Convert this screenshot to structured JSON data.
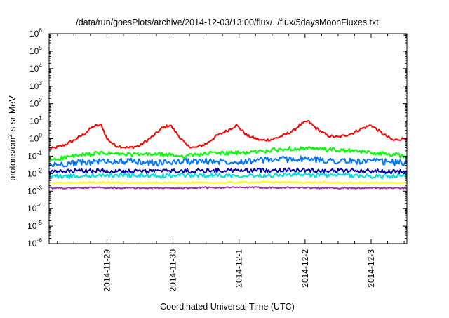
{
  "chart_data": {
    "type": "line",
    "title": "/data/run/goesPlots/archive/2014-12-03/13:00/flux/../flux/5daysMoonFluxes.txt",
    "xlabel": "Coordinated Universal Time (UTC)",
    "ylabel": {
      "base": "protons/cm",
      "sup": "2",
      "rest": "-s-sr-MeV"
    },
    "x_scale": "time",
    "y_scale": "log",
    "xlim": [
      "2014-11-28T03:00",
      "2014-12-03T13:00"
    ],
    "ylim": [
      1e-06,
      1000000.0
    ],
    "x_ticks": [
      "2014-11-29",
      "2014-11-30",
      "2014-12-1",
      "2014-12-2",
      "2014-12-3"
    ],
    "y_ticks": [
      {
        "value": 1e-06,
        "base": "10",
        "exp": "-6"
      },
      {
        "value": 1e-05,
        "base": "10",
        "exp": "-5"
      },
      {
        "value": 0.0001,
        "base": "10",
        "exp": "-4"
      },
      {
        "value": 0.001,
        "base": "10",
        "exp": "-3"
      },
      {
        "value": 0.01,
        "base": "10",
        "exp": "-2"
      },
      {
        "value": 0.1,
        "base": "10",
        "exp": "-1"
      },
      {
        "value": 1.0,
        "base": "10",
        "exp": "0"
      },
      {
        "value": 10.0,
        "base": "10",
        "exp": "1"
      },
      {
        "value": 100.0,
        "base": "10",
        "exp": "2"
      },
      {
        "value": 1000.0,
        "base": "10",
        "exp": "3"
      },
      {
        "value": 10000.0,
        "base": "10",
        "exp": "4"
      },
      {
        "value": 100000.0,
        "base": "10",
        "exp": "5"
      },
      {
        "value": 1000000.0,
        "base": "10",
        "exp": "6"
      }
    ],
    "grid": false,
    "legend": "none",
    "series": [
      {
        "color": "#ff0000",
        "x": [
          "2014-11-28T03:00",
          "2014-11-28T08:00",
          "2014-11-28T12:00",
          "2014-11-28T16:00",
          "2014-11-28T19:00",
          "2014-11-28T22:00",
          "2014-11-29T00:00",
          "2014-11-29T03:00",
          "2014-11-29T08:00",
          "2014-11-29T12:00",
          "2014-11-29T17:00",
          "2014-11-29T20:00",
          "2014-11-29T23:00",
          "2014-11-30T02:00",
          "2014-11-30T05:00",
          "2014-11-30T08:00",
          "2014-11-30T12:00",
          "2014-11-30T16:00",
          "2014-11-30T20:00",
          "2014-11-30T23:00",
          "2014-12-01T03:00",
          "2014-12-01T08:00",
          "2014-12-01T12:00",
          "2014-12-01T16:00",
          "2014-12-01T20:00",
          "2014-12-01T22:00",
          "2014-12-02T01:00",
          "2014-12-02T04:00",
          "2014-12-02T08:00",
          "2014-12-02T12:00",
          "2014-12-02T17:00",
          "2014-12-02T21:00",
          "2014-12-03T00:00",
          "2014-12-03T04:00",
          "2014-12-03T08:00",
          "2014-12-03T13:00"
        ],
        "y": [
          0.25,
          0.4,
          0.8,
          2.0,
          5.0,
          6.0,
          1.0,
          0.4,
          0.3,
          0.4,
          1.5,
          4.0,
          6.0,
          1.5,
          0.4,
          0.3,
          0.5,
          1.5,
          3.0,
          6.0,
          1.5,
          0.8,
          0.9,
          1.5,
          3.0,
          6.0,
          10.0,
          4.0,
          1.5,
          1.2,
          2.0,
          4.0,
          6.0,
          2.0,
          0.8,
          1.1
        ]
      },
      {
        "color": "#00ff00",
        "x": [
          "2014-11-28T03:00",
          "2014-11-28T12:00",
          "2014-11-28T22:00",
          "2014-11-29T08:00",
          "2014-11-29T18:00",
          "2014-11-30T04:00",
          "2014-11-30T14:00",
          "2014-12-01T00:00",
          "2014-12-01T10:00",
          "2014-12-01T20:00",
          "2014-12-02T06:00",
          "2014-12-02T16:00",
          "2014-12-03T02:00",
          "2014-12-03T13:00"
        ],
        "y": [
          0.06,
          0.1,
          0.15,
          0.12,
          0.13,
          0.1,
          0.15,
          0.15,
          0.2,
          0.28,
          0.25,
          0.2,
          0.15,
          0.1
        ]
      },
      {
        "color": "#0077ff",
        "x": [
          "2014-11-28T03:00",
          "2014-11-28T12:00",
          "2014-11-28T22:00",
          "2014-11-29T08:00",
          "2014-11-29T18:00",
          "2014-11-30T04:00",
          "2014-11-30T14:00",
          "2014-12-01T00:00",
          "2014-12-01T10:00",
          "2014-12-01T20:00",
          "2014-12-02T06:00",
          "2014-12-02T16:00",
          "2014-12-03T02:00",
          "2014-12-03T13:00"
        ],
        "y": [
          0.03,
          0.04,
          0.05,
          0.05,
          0.04,
          0.05,
          0.05,
          0.05,
          0.06,
          0.07,
          0.06,
          0.05,
          0.05,
          0.04
        ]
      },
      {
        "color": "#0000aa",
        "x": [
          "2014-11-28T03:00",
          "2014-11-28T12:00",
          "2014-11-28T22:00",
          "2014-11-29T08:00",
          "2014-11-29T18:00",
          "2014-11-30T04:00",
          "2014-11-30T14:00",
          "2014-12-01T00:00",
          "2014-12-01T10:00",
          "2014-12-01T20:00",
          "2014-12-02T06:00",
          "2014-12-02T16:00",
          "2014-12-03T02:00",
          "2014-12-03T13:00"
        ],
        "y": [
          0.012,
          0.014,
          0.015,
          0.013,
          0.014,
          0.014,
          0.015,
          0.015,
          0.016,
          0.016,
          0.015,
          0.015,
          0.014,
          0.012
        ]
      },
      {
        "color": "#00dddd",
        "x": [
          "2014-11-28T03:00",
          "2014-11-28T12:00",
          "2014-11-28T22:00",
          "2014-11-29T08:00",
          "2014-11-29T18:00",
          "2014-11-30T04:00",
          "2014-11-30T14:00",
          "2014-12-01T00:00",
          "2014-12-01T10:00",
          "2014-12-01T20:00",
          "2014-12-02T06:00",
          "2014-12-02T16:00",
          "2014-12-03T02:00",
          "2014-12-03T13:00"
        ],
        "y": [
          0.007,
          0.007,
          0.008,
          0.008,
          0.007,
          0.008,
          0.008,
          0.008,
          0.008,
          0.009,
          0.008,
          0.008,
          0.007,
          0.007
        ]
      },
      {
        "color": "#ffff00",
        "x": [
          "2014-11-28T03:00",
          "2014-11-28T12:00",
          "2014-11-28T22:00",
          "2014-11-29T08:00",
          "2014-11-29T18:00",
          "2014-11-30T04:00",
          "2014-11-30T14:00",
          "2014-12-01T00:00",
          "2014-12-01T10:00",
          "2014-12-01T20:00",
          "2014-12-02T06:00",
          "2014-12-02T16:00",
          "2014-12-03T02:00",
          "2014-12-03T13:00"
        ],
        "y": [
          0.003,
          0.003,
          0.0032,
          0.003,
          0.003,
          0.0031,
          0.003,
          0.0032,
          0.0033,
          0.0032,
          0.0031,
          0.003,
          0.003,
          0.003
        ]
      },
      {
        "color": "#993399",
        "x": [
          "2014-11-28T03:00",
          "2014-11-28T12:00",
          "2014-11-28T22:00",
          "2014-11-29T08:00",
          "2014-11-29T18:00",
          "2014-11-30T04:00",
          "2014-11-30T14:00",
          "2014-12-01T00:00",
          "2014-12-01T10:00",
          "2014-12-01T20:00",
          "2014-12-02T06:00",
          "2014-12-02T16:00",
          "2014-12-03T02:00",
          "2014-12-03T13:00"
        ],
        "y": [
          0.0015,
          0.0015,
          0.0016,
          0.0015,
          0.0015,
          0.0015,
          0.0016,
          0.0016,
          0.0016,
          0.0016,
          0.0015,
          0.0015,
          0.0015,
          0.0015
        ]
      }
    ]
  }
}
